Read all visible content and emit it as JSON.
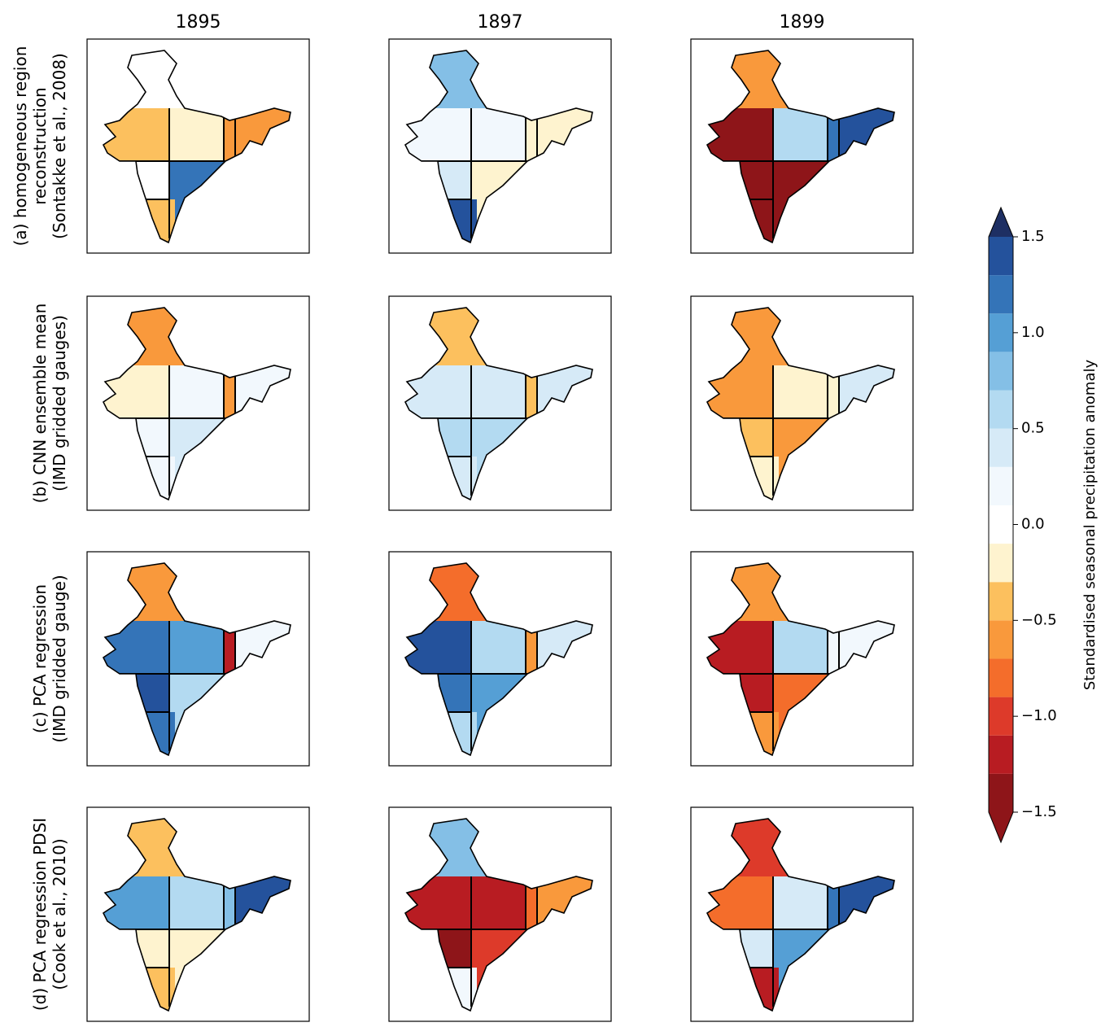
{
  "chart_data": {
    "type": "choropleth-grid",
    "column_titles": [
      "1895",
      "1897",
      "1899"
    ],
    "row_labels": [
      [
        "(a) homogeneous region",
        "reconstruction",
        "(Sontakke et al., 2008)"
      ],
      [
        "(b) CNN ensemble mean",
        "(IMD gridded gauges)"
      ],
      [
        "(c) PCA regression",
        "(IMD gridded gauge)"
      ],
      [
        "(d) PCA regression PDSI",
        "(Cook et al., 2010)"
      ]
    ],
    "panels": [
      [
        {
          "values": [
            0.05,
            -0.4,
            -0.2,
            -0.7,
            -0.7,
            0,
            1.2,
            -0.4
          ]
        },
        {
          "values": [
            0.8,
            0.1,
            0.1,
            -0.3,
            -0.3,
            0.4,
            -0.2,
            1.4
          ]
        },
        {
          "values": [
            -0.7,
            -1.4,
            0.5,
            1.2,
            1.4,
            -1.4,
            -1.4,
            -1.4
          ]
        }
      ],
      [
        {
          "values": [
            -0.6,
            -0.2,
            0.2,
            -0.6,
            0.1,
            0.1,
            0.3,
            0.1
          ]
        },
        {
          "values": [
            -0.4,
            0.4,
            0.3,
            -0.4,
            0.3,
            0.6,
            0.5,
            0.4
          ]
        },
        {
          "values": [
            -0.6,
            -0.7,
            -0.3,
            -0.2,
            0.3,
            -0.4,
            -0.6,
            -0.2
          ]
        }
      ],
      [
        {
          "values": [
            -0.6,
            1.2,
            0.9,
            -1.2,
            0.2,
            1.4,
            0.6,
            1.2
          ]
        },
        {
          "values": [
            -0.8,
            1.3,
            0.6,
            -0.7,
            0.4,
            1.2,
            0.9,
            0.6
          ]
        },
        {
          "values": [
            -0.6,
            -1.2,
            0.6,
            0.2,
            0.2,
            -1.3,
            -0.9,
            -0.6
          ]
        }
      ],
      [
        {
          "values": [
            -0.4,
            0.9,
            0.6,
            0.8,
            1.4,
            -0.3,
            -0.2,
            -0.5
          ]
        },
        {
          "values": [
            0.8,
            -1.3,
            -1.2,
            -0.9,
            -0.7,
            -1.4,
            -1.0,
            0.2
          ]
        },
        {
          "values": [
            -1.0,
            -0.8,
            0.4,
            1.1,
            1.4,
            0.4,
            1.0,
            -1.3
          ]
        }
      ]
    ],
    "colorbar": {
      "label": "Standardised seasonal precipitation anomaly",
      "levels": [
        -1.5,
        -1.3,
        -1.1,
        -0.9,
        -0.7,
        -0.5,
        -0.3,
        -0.1,
        0.1,
        0.3,
        0.5,
        0.7,
        0.9,
        1.1,
        1.3,
        1.5
      ],
      "colors": [
        "#8e1519",
        "#b81c22",
        "#dd3a2a",
        "#f46d2b",
        "#f9993c",
        "#fcc05e",
        "#fef3cf",
        "#ffffff",
        "#f2f8fd",
        "#d6eaf7",
        "#b3daf1",
        "#84bfe6",
        "#559fd5",
        "#3474b8",
        "#24529c"
      ],
      "under_color": "#8e1519",
      "over_color": "#1e2f63",
      "ticks": [
        {
          "value": -1.5,
          "label": "−1.5"
        },
        {
          "value": -1,
          "label": "−1.0"
        },
        {
          "value": -0.5,
          "label": "−0.5"
        },
        {
          "value": 0,
          "label": "0.0"
        },
        0.5,
        {
          "value": 1,
          "label": "1.0"
        },
        1.5
      ]
    }
  }
}
